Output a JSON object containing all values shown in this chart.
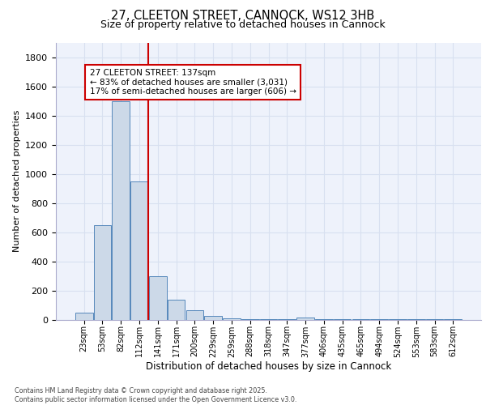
{
  "title1": "27, CLEETON STREET, CANNOCK, WS12 3HB",
  "title2": "Size of property relative to detached houses in Cannock",
  "xlabel": "Distribution of detached houses by size in Cannock",
  "ylabel": "Number of detached properties",
  "bar_labels": [
    "23sqm",
    "53sqm",
    "82sqm",
    "112sqm",
    "141sqm",
    "171sqm",
    "200sqm",
    "229sqm",
    "259sqm",
    "288sqm",
    "318sqm",
    "347sqm",
    "377sqm",
    "406sqm",
    "435sqm",
    "465sqm",
    "494sqm",
    "524sqm",
    "553sqm",
    "583sqm",
    "612sqm"
  ],
  "bar_values": [
    50,
    650,
    1500,
    950,
    300,
    140,
    65,
    25,
    10,
    5,
    5,
    5,
    15,
    5,
    5,
    5,
    5,
    5,
    5,
    5,
    5
  ],
  "bar_color": "#ccd9e8",
  "bar_edge_color": "#5588bb",
  "grid_color": "#d8e0f0",
  "background_color": "#eef2fb",
  "vline_color": "#cc0000",
  "annotation_line1": "27 CLEETON STREET: 137sqm",
  "annotation_line2": "← 83% of detached houses are smaller (3,031)",
  "annotation_line3": "17% of semi-detached houses are larger (606) →",
  "annotation_box_color": "#ffffff",
  "annotation_box_edge": "#cc0000",
  "ylim": [
    0,
    1900
  ],
  "yticks": [
    0,
    200,
    400,
    600,
    800,
    1000,
    1200,
    1400,
    1600,
    1800
  ],
  "footer1": "Contains HM Land Registry data © Crown copyright and database right 2025.",
  "footer2": "Contains public sector information licensed under the Open Government Licence v3.0.",
  "vline_bar_index": 3.5
}
